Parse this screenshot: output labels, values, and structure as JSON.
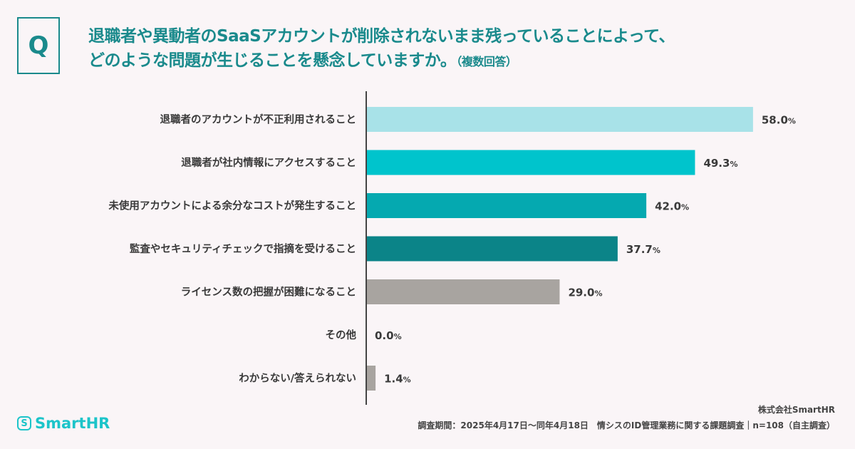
{
  "question": {
    "badge": "Q",
    "line1": "退職者や異動者のSaaSアカウントが削除されないまま残っていることによって、",
    "line2": "どのような問題が生じることを懸念していますか。",
    "note": "（複数回答）",
    "color": "#1a8a8c"
  },
  "chart_data": {
    "type": "bar",
    "orientation": "horizontal",
    "categories": [
      "退職者のアカウントが不正利用されること",
      "退職者が社内情報にアクセスすること",
      "未使用アカウントによる余分なコストが発生すること",
      "監査やセキュリティチェックで指摘を受けること",
      "ライセンス数の把握が困難になること",
      "その他",
      "わからない/答えられない"
    ],
    "values": [
      58.0,
      49.3,
      42.0,
      37.7,
      29.0,
      0.0,
      1.4
    ],
    "value_suffix": "%",
    "colors": [
      "#a8e2e8",
      "#00c4cc",
      "#05a9b0",
      "#0b8488",
      "#a8a4a0",
      "#a8a4a0",
      "#a8a4a0"
    ],
    "xlim": [
      0,
      100
    ],
    "grid": false
  },
  "footer": {
    "company": "株式会社SmartHR",
    "survey": "調査期間：2025年4月17日～同年4月18日　情シスのID管理業務に関する課題調査｜n=108（自主調査）",
    "logo_text": "SmartHR"
  }
}
